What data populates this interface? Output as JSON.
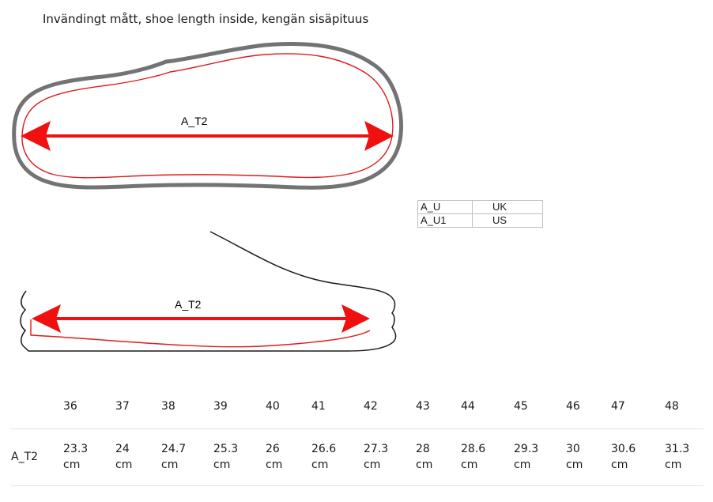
{
  "title": "Invändingt mått, shoe length inside, kengän sisäpituus",
  "diagram": {
    "top_label": "A_T2",
    "side_label": "A_T2"
  },
  "legend": [
    {
      "key": "A_U",
      "value": "UK"
    },
    {
      "key": "A_U1",
      "value": "US"
    }
  ],
  "sizes": {
    "row_label": "A_T2",
    "columns": [
      {
        "size": "36",
        "value": "23.3",
        "unit": "cm"
      },
      {
        "size": "37",
        "value": "24",
        "unit": "cm"
      },
      {
        "size": "38",
        "value": "24.7",
        "unit": "cm"
      },
      {
        "size": "39",
        "value": "25.3",
        "unit": "cm"
      },
      {
        "size": "40",
        "value": "26",
        "unit": "cm"
      },
      {
        "size": "41",
        "value": "26.6",
        "unit": "cm"
      },
      {
        "size": "42",
        "value": "27.3",
        "unit": "cm"
      },
      {
        "size": "43",
        "value": "28",
        "unit": "cm"
      },
      {
        "size": "44",
        "value": "28.6",
        "unit": "cm"
      },
      {
        "size": "45",
        "value": "29.3",
        "unit": "cm"
      },
      {
        "size": "46",
        "value": "30",
        "unit": "cm"
      },
      {
        "size": "47",
        "value": "30.6",
        "unit": "cm"
      },
      {
        "size": "48",
        "value": "31.3",
        "unit": "cm"
      }
    ]
  },
  "colors": {
    "outline": "#737373",
    "inner": "#e01b1b",
    "arrow": "#f01010"
  }
}
